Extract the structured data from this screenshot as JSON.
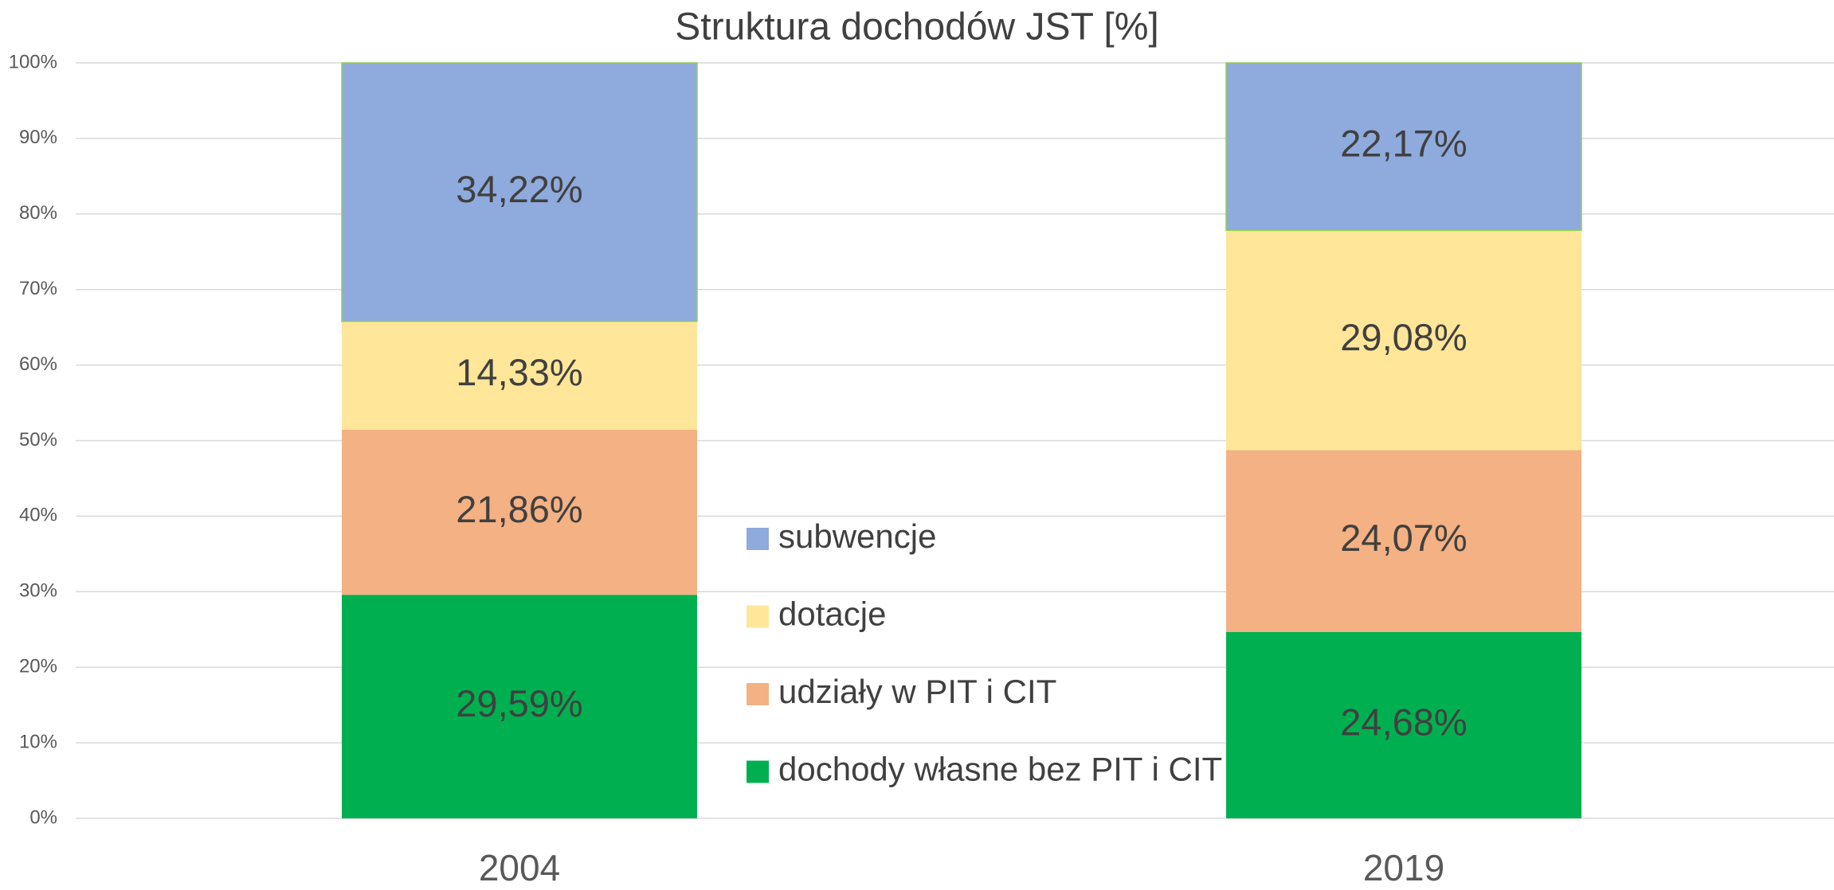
{
  "chart_data": {
    "type": "stacked_bar",
    "title": "Struktura dochodów JST [%]",
    "categories": [
      "2004",
      "2019"
    ],
    "series": [
      {
        "name": "dochody własne bez PIT i CIT",
        "color": "#00b050",
        "values": [
          29.59,
          24.68
        ],
        "value_labels": [
          "29,59%",
          "24,68%"
        ]
      },
      {
        "name": "udziały w PIT i CIT",
        "color": "#f4b183",
        "values": [
          21.86,
          24.07
        ],
        "value_labels": [
          "21,86%",
          "24,07%"
        ]
      },
      {
        "name": "dotacje",
        "color": "#ffe699",
        "values": [
          14.33,
          29.08
        ],
        "value_labels": [
          "14,33%",
          "29,08%"
        ]
      },
      {
        "name": "subwencje",
        "color": "#8faadc",
        "values": [
          34.22,
          22.17
        ],
        "value_labels": [
          "34,22%",
          "22,17%"
        ]
      }
    ],
    "ylim": [
      0,
      100
    ],
    "yticks": [
      {
        "value": 0,
        "label": "0%"
      },
      {
        "value": 10,
        "label": "10%"
      },
      {
        "value": 20,
        "label": "20%"
      },
      {
        "value": 30,
        "label": "30%"
      },
      {
        "value": 40,
        "label": "40%"
      },
      {
        "value": 50,
        "label": "50%"
      },
      {
        "value": 60,
        "label": "60%"
      },
      {
        "value": 70,
        "label": "70%"
      },
      {
        "value": 80,
        "label": "80%"
      },
      {
        "value": 90,
        "label": "90%"
      },
      {
        "value": 100,
        "label": "100%"
      }
    ],
    "grid": true
  }
}
